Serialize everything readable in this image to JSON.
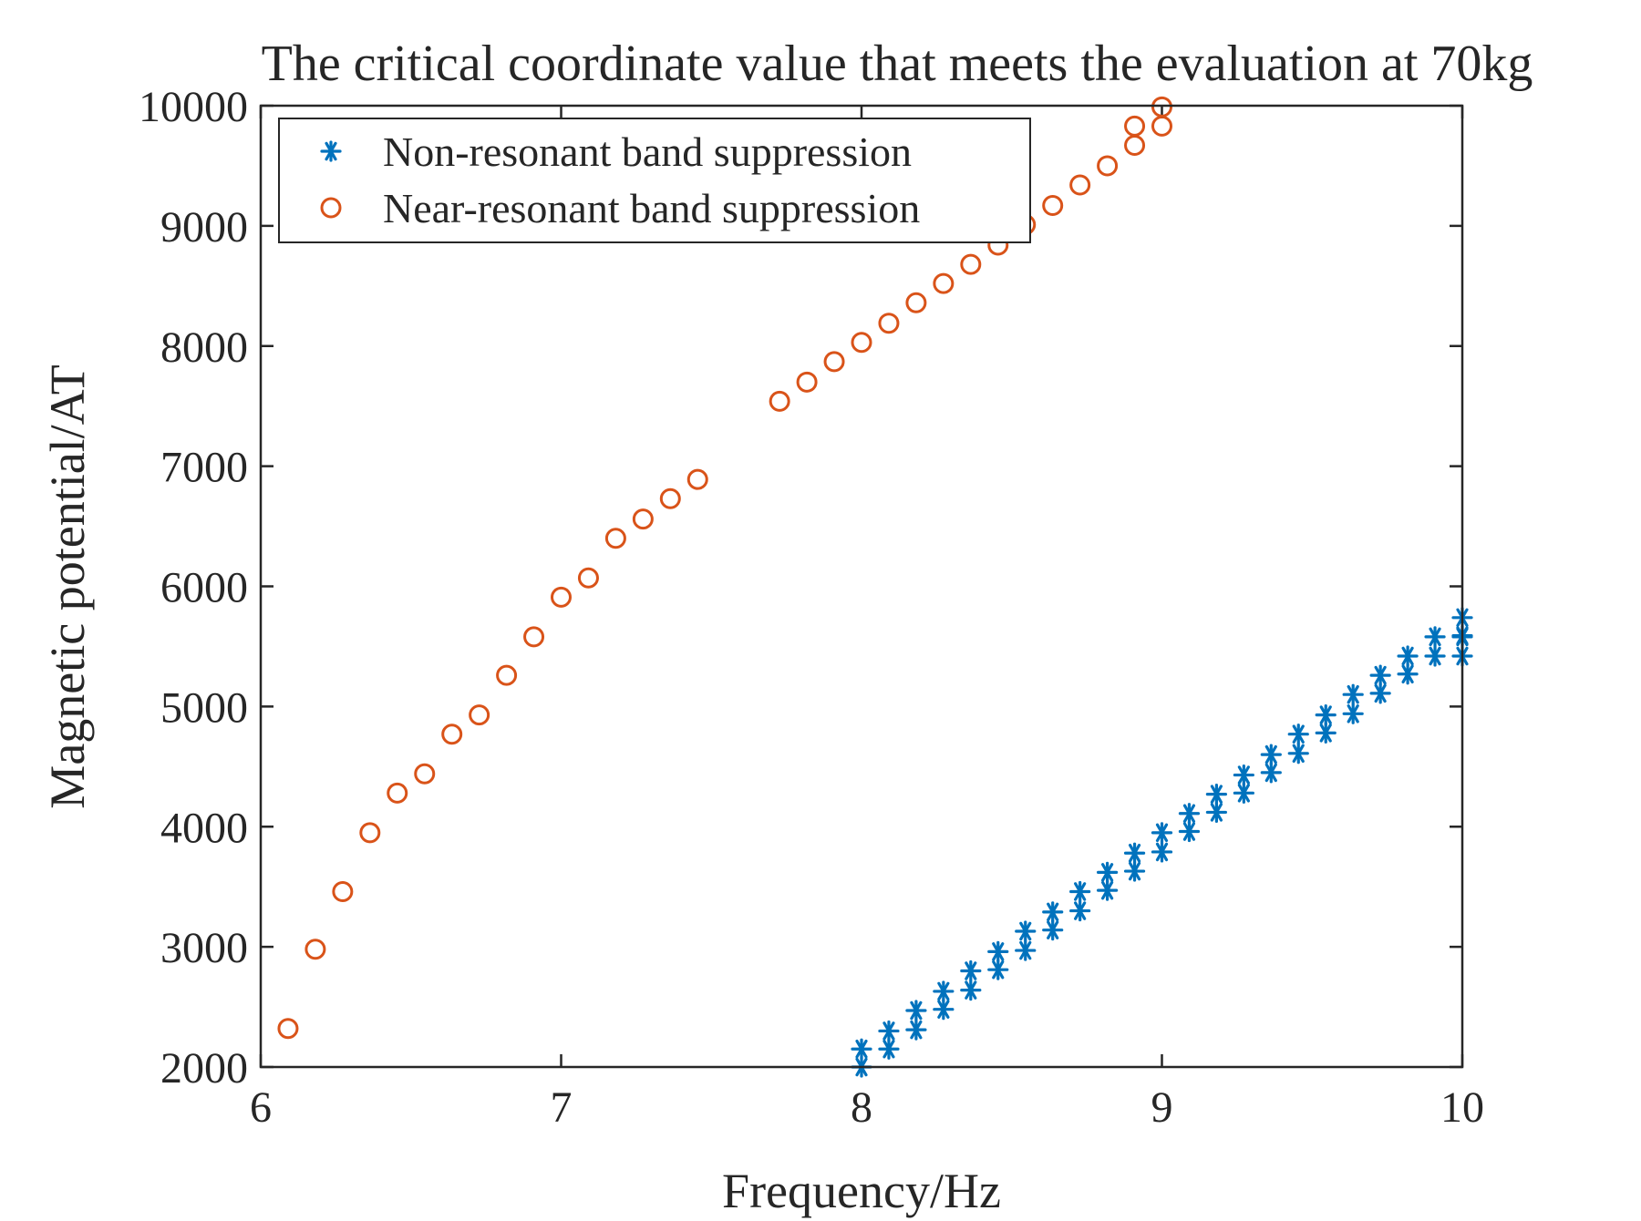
{
  "chart_data": {
    "type": "scatter",
    "title": "The critical coordinate value that meets the evaluation at 70kg",
    "xlabel": "Frequency/Hz",
    "ylabel": "Magnetic potential/AT",
    "xlim": [
      6,
      10
    ],
    "ylim": [
      2000,
      10000
    ],
    "xticks": [
      6,
      7,
      8,
      9,
      10
    ],
    "yticks": [
      2000,
      3000,
      4000,
      5000,
      6000,
      7000,
      8000,
      9000,
      10000
    ],
    "grid": false,
    "legend_position": "top-left",
    "series": [
      {
        "name": "Non-resonant band suppression",
        "marker": "asterisk",
        "color": "#0072BD",
        "points": [
          [
            8.0,
            2000
          ],
          [
            8.0,
            2150
          ],
          [
            8.0909,
            2150
          ],
          [
            8.0909,
            2300
          ],
          [
            8.1818,
            2310
          ],
          [
            8.1818,
            2470
          ],
          [
            8.2727,
            2480
          ],
          [
            8.2727,
            2630
          ],
          [
            8.3636,
            2640
          ],
          [
            8.3636,
            2800
          ],
          [
            8.4545,
            2810
          ],
          [
            8.4545,
            2960
          ],
          [
            8.5455,
            2970
          ],
          [
            8.5455,
            3130
          ],
          [
            8.6364,
            3140
          ],
          [
            8.6364,
            3290
          ],
          [
            8.7273,
            3300
          ],
          [
            8.7273,
            3460
          ],
          [
            8.8182,
            3470
          ],
          [
            8.8182,
            3620
          ],
          [
            8.9091,
            3630
          ],
          [
            8.9091,
            3780
          ],
          [
            9.0,
            3790
          ],
          [
            9.0,
            3950
          ],
          [
            9.0909,
            3960
          ],
          [
            9.0909,
            4110
          ],
          [
            9.1818,
            4120
          ],
          [
            9.1818,
            4270
          ],
          [
            9.2727,
            4280
          ],
          [
            9.2727,
            4430
          ],
          [
            9.3636,
            4450
          ],
          [
            9.3636,
            4600
          ],
          [
            9.4545,
            4610
          ],
          [
            9.4545,
            4770
          ],
          [
            9.5455,
            4780
          ],
          [
            9.5455,
            4930
          ],
          [
            9.6364,
            4940
          ],
          [
            9.6364,
            5100
          ],
          [
            9.7273,
            5110
          ],
          [
            9.7273,
            5260
          ],
          [
            9.8182,
            5270
          ],
          [
            9.8182,
            5420
          ],
          [
            9.9091,
            5420
          ],
          [
            9.9091,
            5580
          ],
          [
            10.0,
            5420
          ],
          [
            10.0,
            5580
          ],
          [
            10.0,
            5590
          ],
          [
            10.0,
            5740
          ]
        ]
      },
      {
        "name": "Near-resonant band suppression",
        "marker": "circle",
        "color": "#D95319",
        "points": [
          [
            6.0909,
            2320
          ],
          [
            6.1818,
            2980
          ],
          [
            6.2727,
            3460
          ],
          [
            6.3636,
            3950
          ],
          [
            6.4545,
            4280
          ],
          [
            6.5455,
            4440
          ],
          [
            6.6364,
            4770
          ],
          [
            6.7273,
            4930
          ],
          [
            6.8182,
            5260
          ],
          [
            6.9091,
            5580
          ],
          [
            7.0,
            5910
          ],
          [
            7.0909,
            6070
          ],
          [
            7.1818,
            6400
          ],
          [
            7.2727,
            6560
          ],
          [
            7.3636,
            6730
          ],
          [
            7.4545,
            6890
          ],
          [
            7.7273,
            7540
          ],
          [
            7.8182,
            7700
          ],
          [
            7.9091,
            7870
          ],
          [
            8.0,
            8030
          ],
          [
            8.0909,
            8190
          ],
          [
            8.1818,
            8360
          ],
          [
            8.2727,
            8520
          ],
          [
            8.3636,
            8680
          ],
          [
            8.4545,
            8840
          ],
          [
            8.5455,
            9010
          ],
          [
            8.6364,
            9170
          ],
          [
            8.7273,
            9340
          ],
          [
            8.8182,
            9500
          ],
          [
            8.9091,
            9670
          ],
          [
            8.9091,
            9830
          ],
          [
            9.0,
            9830
          ],
          [
            9.0,
            9990
          ]
        ]
      }
    ]
  }
}
